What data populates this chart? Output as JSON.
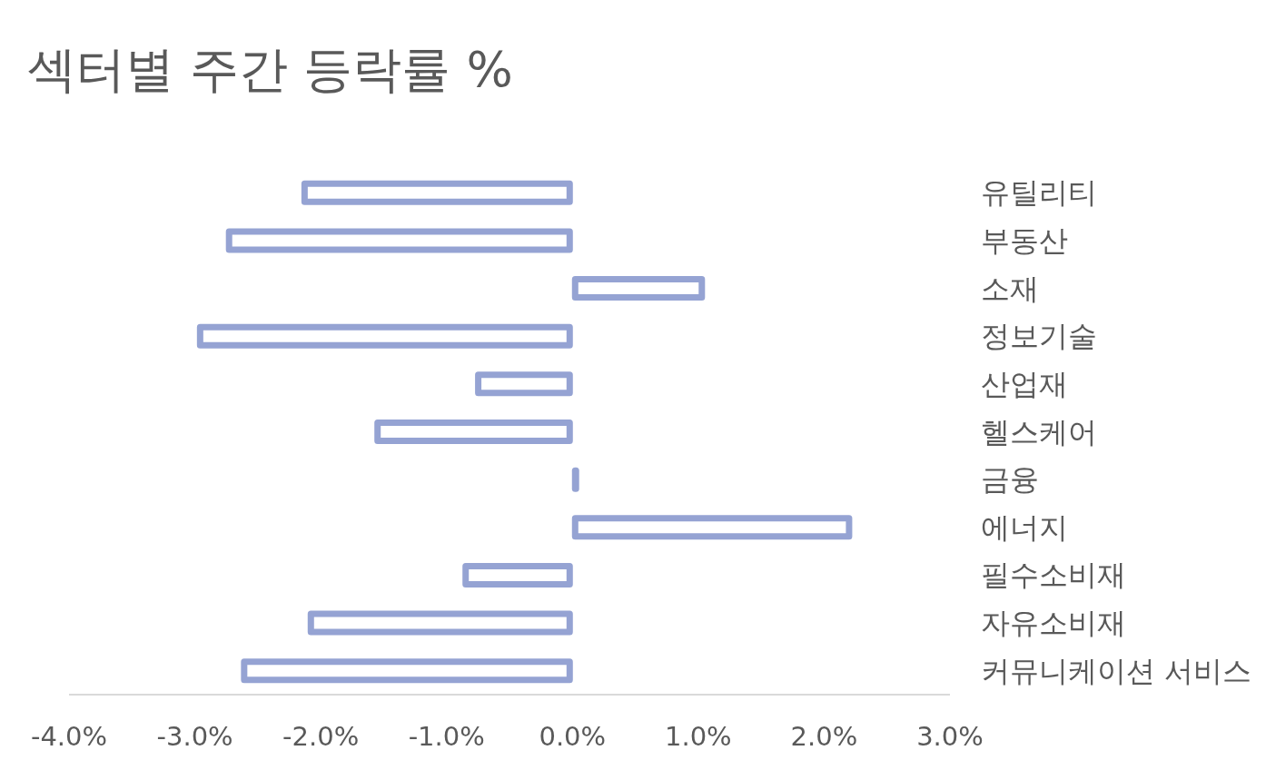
{
  "chart_data": {
    "type": "bar",
    "orientation": "horizontal",
    "title": "섹터별 주간 등락률 %",
    "categories": [
      "유틸리티",
      "부동산",
      "소재",
      "정보기술",
      "산업재",
      "헬스케어",
      "금융",
      "에너지",
      "필수소비재",
      "자유소비재",
      "커뮤니케이션 서비스"
    ],
    "values": [
      -2.15,
      -2.75,
      1.05,
      -2.98,
      -0.77,
      -1.57,
      0.05,
      2.22,
      -0.87,
      -2.1,
      -2.63
    ],
    "color": "#95a3d3",
    "xlim": [
      -4,
      3
    ],
    "xticks": [
      {
        "value": -4,
        "label": "-4.0%"
      },
      {
        "value": -3,
        "label": "-3.0%"
      },
      {
        "value": -2,
        "label": "-2.0%"
      },
      {
        "value": -1,
        "label": "-1.0%"
      },
      {
        "value": 0,
        "label": "0.0%"
      },
      {
        "value": 1,
        "label": "1.0%"
      },
      {
        "value": 2,
        "label": "2.0%"
      },
      {
        "value": 3,
        "label": "3.0%"
      }
    ],
    "grid": false
  }
}
